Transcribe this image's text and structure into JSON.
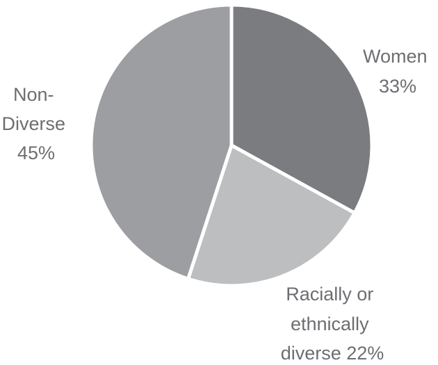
{
  "chart_data": {
    "type": "pie",
    "title": "",
    "legend": "none",
    "slices": [
      {
        "name": "Women",
        "value": 33,
        "label_lines": [
          "Women",
          "33%"
        ],
        "color": "#7b7c80"
      },
      {
        "name": "Racially or ethnically diverse",
        "value": 22,
        "label_lines": [
          "Racially or",
          "ethnically",
          "diverse 22%"
        ],
        "color": "#bdbec0"
      },
      {
        "name": "Non-Diverse",
        "value": 45,
        "label_lines": [
          "Non-",
          "Diverse",
          "45%"
        ],
        "color": "#9d9ea1"
      }
    ]
  }
}
